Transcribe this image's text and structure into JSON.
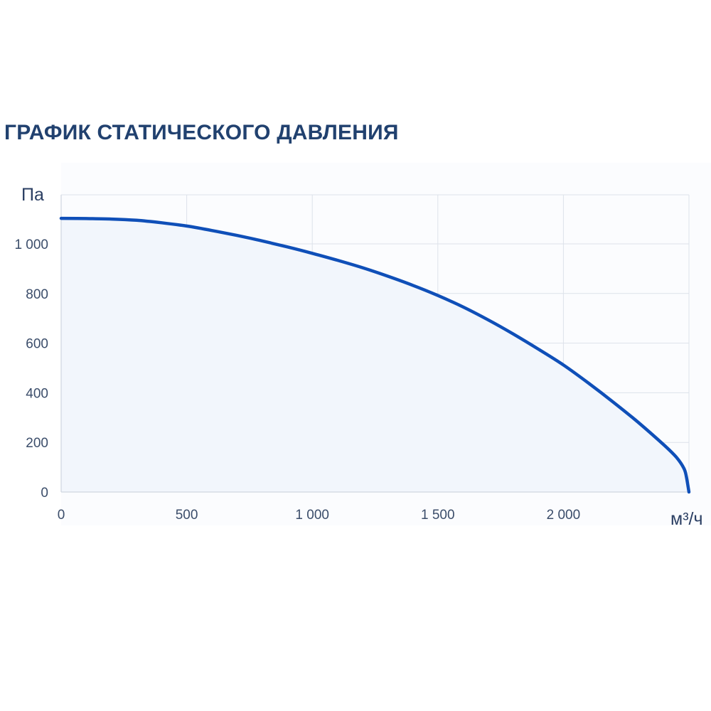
{
  "title": "ГРАФИК СТАТИЧЕСКОГО ДАВЛЕНИЯ",
  "chart_data": {
    "type": "area",
    "title": "ГРАФИК СТАТИЧЕСКОГО ДАВЛЕНИЯ",
    "xlabel": "м³/ч",
    "ylabel": "Па",
    "xlim": [
      0,
      2500
    ],
    "ylim": [
      0,
      1200
    ],
    "x_ticks": [
      0,
      500,
      1000,
      1500,
      2000
    ],
    "x_tick_labels": [
      "0",
      "500",
      "1 000",
      "1 500",
      "2 000"
    ],
    "y_ticks": [
      0,
      200,
      400,
      600,
      800,
      1000
    ],
    "y_tick_labels": [
      "0",
      "200",
      "400",
      "600",
      "800",
      "1 000"
    ],
    "grid": true,
    "legend": "none",
    "colors": {
      "line": "#0f4fb8",
      "fill": "#f2f6fc",
      "grid": "#dde2ea",
      "plot_bg": "#fbfcfe"
    },
    "series": [
      {
        "x": [
          0,
          100,
          200,
          300,
          400,
          500,
          600,
          700,
          800,
          900,
          1000,
          1100,
          1200,
          1300,
          1400,
          1500,
          1600,
          1700,
          1800,
          1900,
          2000,
          2100,
          2200,
          2300,
          2400,
          2450,
          2480,
          2490,
          2500
        ],
        "y": [
          1103,
          1102,
          1100,
          1095,
          1085,
          1072,
          1054,
          1034,
          1012,
          988,
          962,
          934,
          904,
          870,
          833,
          792,
          746,
          694,
          637,
          576,
          512,
          439,
          361,
          279,
          190,
          140,
          95,
          60,
          0
        ]
      }
    ]
  }
}
